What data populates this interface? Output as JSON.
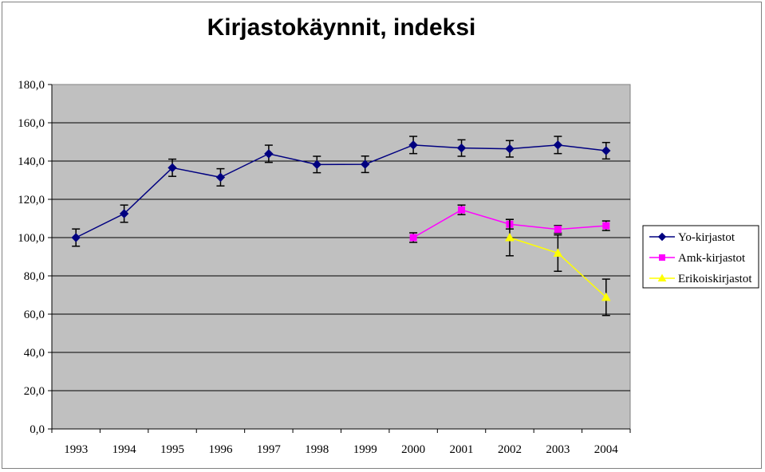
{
  "chart_data": {
    "type": "line",
    "title": "Kirjastokäynnit, indeksi",
    "xlabel": "",
    "ylabel": "",
    "categories": [
      "1993",
      "1994",
      "1995",
      "1996",
      "1997",
      "1998",
      "1999",
      "2000",
      "2001",
      "2002",
      "2003",
      "2004"
    ],
    "ylim": [
      0,
      180
    ],
    "ytick_step": 20,
    "ytick_labels": [
      "0,0",
      "20,0",
      "40,0",
      "60,0",
      "80,0",
      "100,0",
      "120,0",
      "140,0",
      "160,0",
      "180,0"
    ],
    "grid": "horizontal",
    "plot_background": "#c0c0c0",
    "legend_position": "right",
    "error_bars": true,
    "series": [
      {
        "name": "Yo-kirjastot",
        "color": "#000080",
        "marker": "diamond",
        "values": [
          100.0,
          112.5,
          136.5,
          131.5,
          143.8,
          138.2,
          138.3,
          148.4,
          146.8,
          146.4,
          148.4,
          145.4
        ],
        "errors": [
          4.5,
          4.5,
          4.5,
          4.5,
          4.5,
          4.3,
          4.3,
          4.5,
          4.3,
          4.3,
          4.5,
          4.3
        ]
      },
      {
        "name": "Amk-kirjastot",
        "color": "#ff00ff",
        "marker": "square",
        "values": [
          null,
          null,
          null,
          null,
          null,
          null,
          null,
          100.0,
          114.5,
          107.0,
          104.3,
          106.2
        ],
        "errors": [
          null,
          null,
          null,
          null,
          null,
          null,
          null,
          2.5,
          2.5,
          2.5,
          2.0,
          2.5
        ]
      },
      {
        "name": "Erikoiskirjastot",
        "color": "#ffff00",
        "marker": "triangle",
        "values": [
          null,
          null,
          null,
          null,
          null,
          null,
          null,
          null,
          null,
          100.0,
          91.9,
          68.8
        ],
        "errors": [
          null,
          null,
          null,
          null,
          null,
          null,
          null,
          null,
          null,
          9.5,
          9.5,
          9.5
        ]
      }
    ]
  }
}
